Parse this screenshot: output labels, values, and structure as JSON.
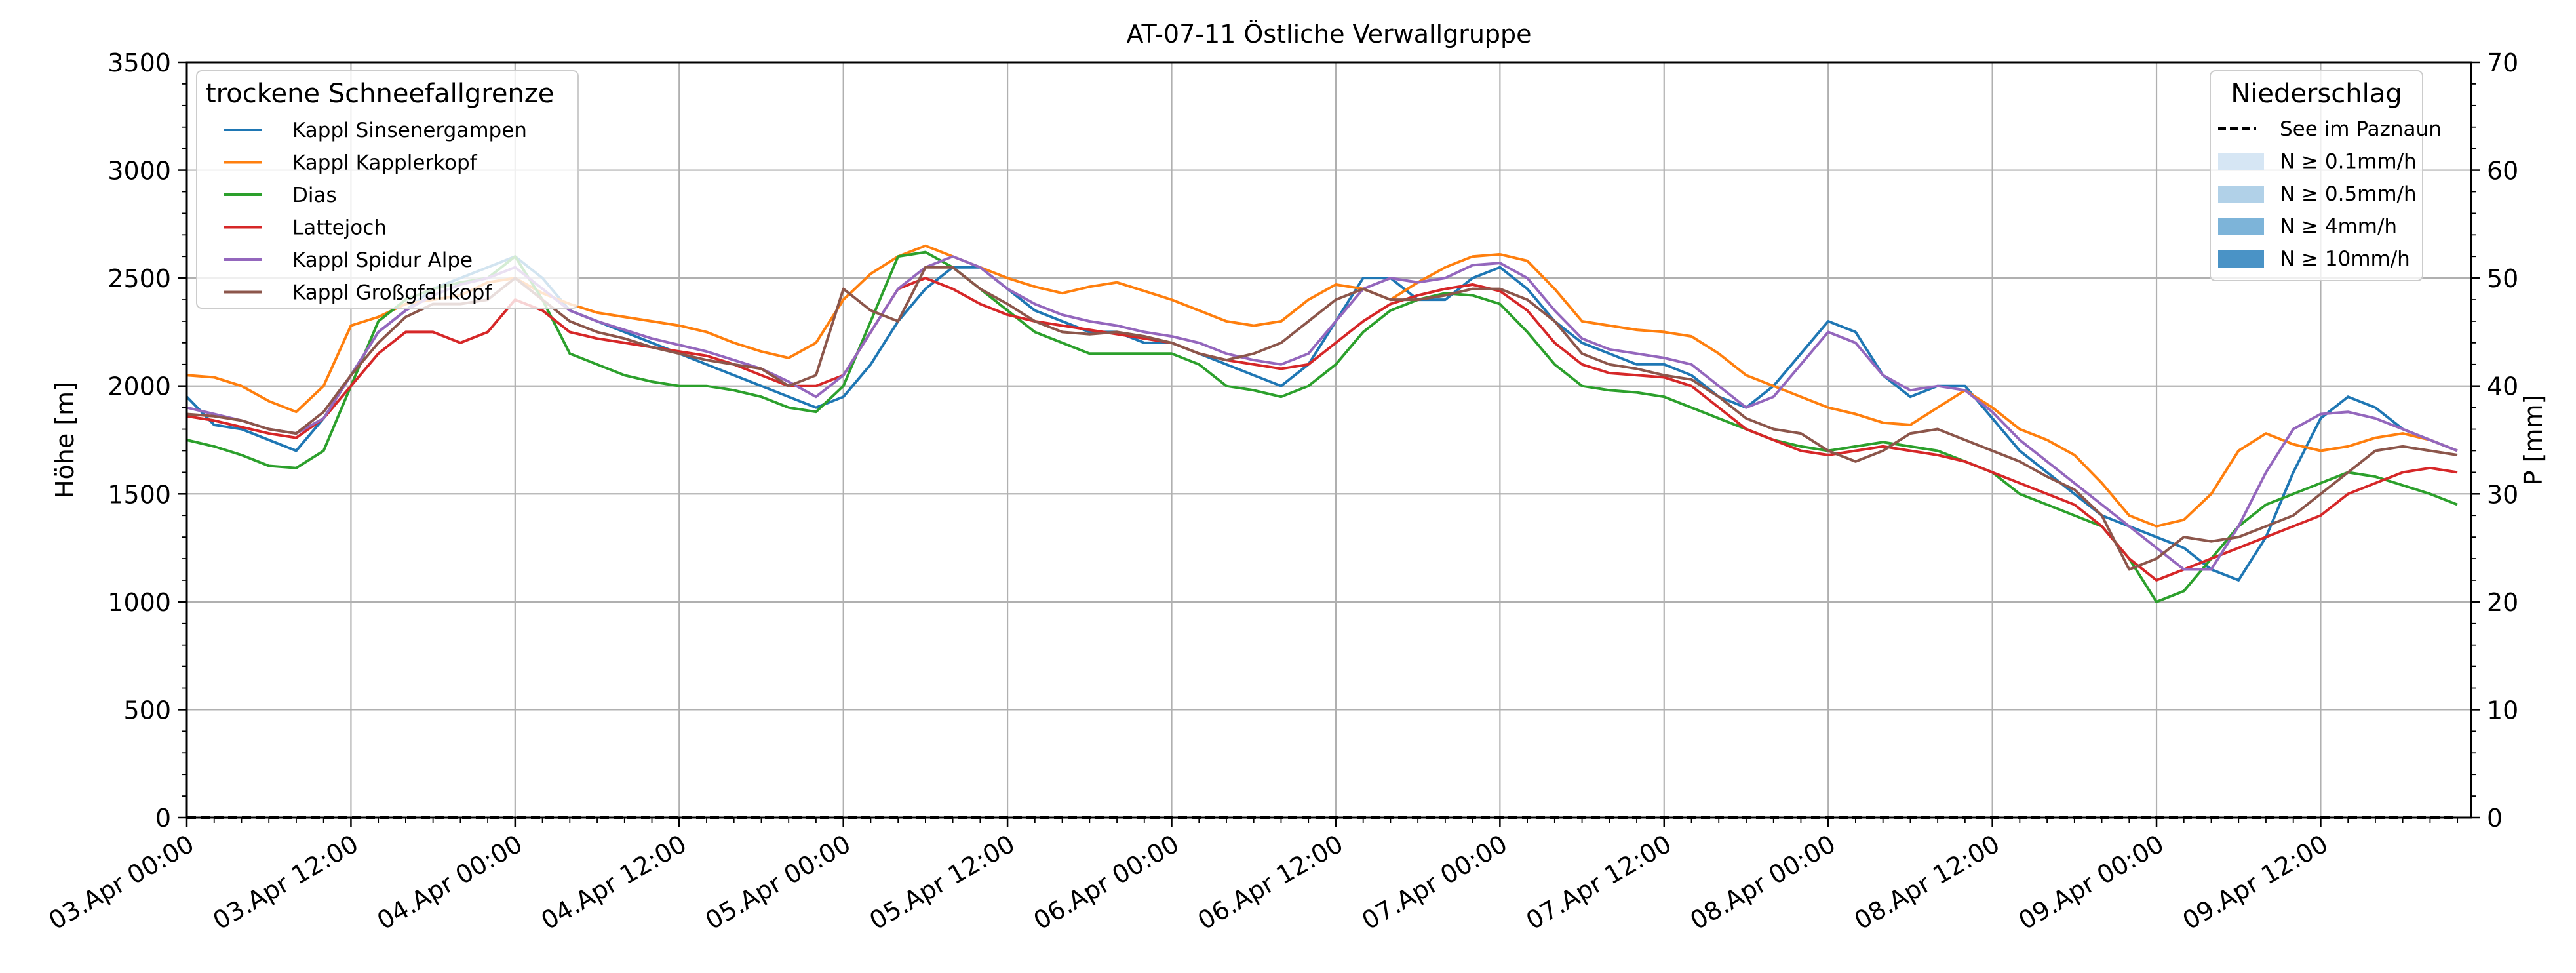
{
  "chart_data": {
    "type": "line",
    "title": "AT-07-11 Östliche Verwallgruppe",
    "ylabel": "Höhe [m]",
    "ylabel_right": "P [mm]",
    "xlabel": "",
    "ylim": [
      0,
      3500
    ],
    "ylim_right": [
      0,
      70
    ],
    "yticks": [
      0,
      500,
      1000,
      1500,
      2000,
      2500,
      3000,
      3500
    ],
    "yticks_right": [
      0,
      10,
      20,
      30,
      40,
      50,
      60,
      70
    ],
    "grid": true,
    "x_start": "03.Apr 00:00",
    "x_end": "09.Apr 23:00",
    "x_step_hours": 2,
    "xticks": [
      "03.Apr 00:00",
      "03.Apr 12:00",
      "04.Apr 00:00",
      "04.Apr 12:00",
      "05.Apr 00:00",
      "05.Apr 12:00",
      "06.Apr 00:00",
      "06.Apr 12:00",
      "07.Apr 00:00",
      "07.Apr 12:00",
      "08.Apr 00:00",
      "08.Apr 12:00",
      "09.Apr 00:00",
      "09.Apr 12:00"
    ],
    "legend_left": {
      "title": "trockene Schneefallgrenze",
      "location": "top-left"
    },
    "legend_right": {
      "title": "Niederschlag",
      "location": "top-right",
      "entries": [
        {
          "label": "See im Paznaun",
          "style": "dashed-line",
          "color": "#000000"
        },
        {
          "label": "N ≥ 0.1mm/h",
          "style": "patch",
          "color": "#d6e6f4"
        },
        {
          "label": "N ≥ 0.5mm/h",
          "style": "patch",
          "color": "#b1d1e8"
        },
        {
          "label": "N ≥ 4mm/h",
          "style": "patch",
          "color": "#7db4d9"
        },
        {
          "label": "N ≥ 10mm/h",
          "style": "patch",
          "color": "#4a93c6"
        }
      ]
    },
    "precipitation": {
      "name": "See im Paznaun",
      "values": [
        0,
        0,
        0,
        0,
        0,
        0,
        0,
        0,
        0,
        0,
        0,
        0,
        0,
        0,
        0,
        0,
        0,
        0,
        0,
        0,
        0,
        0,
        0,
        0,
        0,
        0,
        0,
        0,
        0,
        0,
        0,
        0,
        0,
        0,
        0,
        0,
        0,
        0,
        0,
        0,
        0,
        0,
        0,
        0,
        0,
        0,
        0,
        0,
        0,
        0,
        0,
        0,
        0,
        0,
        0,
        0,
        0,
        0,
        0,
        0,
        0,
        0,
        0,
        0,
        0,
        0,
        0,
        0,
        0,
        0,
        0,
        0,
        0,
        0,
        0,
        0,
        0,
        0,
        0,
        0,
        0,
        0,
        0,
        0
      ]
    },
    "series": [
      {
        "name": "Kappl Sinsenergampen",
        "color": "#1f77b4",
        "values": [
          1950,
          1820,
          1800,
          1750,
          1700,
          1850,
          2050,
          2250,
          2350,
          2450,
          2500,
          2550,
          2600,
          2500,
          2350,
          2300,
          2250,
          2200,
          2150,
          2100,
          2050,
          2000,
          1950,
          1900,
          1950,
          2100,
          2300,
          2450,
          2550,
          2550,
          2450,
          2350,
          2300,
          2250,
          2250,
          2200,
          2200,
          2150,
          2100,
          2050,
          2000,
          2100,
          2300,
          2500,
          2500,
          2400,
          2400,
          2500,
          2550,
          2450,
          2300,
          2200,
          2150,
          2100,
          2100,
          2050,
          1950,
          1900,
          2000,
          2150,
          2300,
          2250,
          2050,
          1950,
          2000,
          2000,
          1850,
          1700,
          1600,
          1500,
          1400,
          1350,
          1300,
          1250,
          1150,
          1100,
          1300,
          1600,
          1850,
          1950,
          1900,
          1800,
          1750,
          1700
        ]
      },
      {
        "name": "Kappl Kapplerkopf",
        "color": "#ff7f0e",
        "values": [
          2050,
          2040,
          2000,
          1930,
          1880,
          2000,
          2280,
          2320,
          2380,
          2400,
          2420,
          2480,
          2500,
          2430,
          2380,
          2340,
          2320,
          2300,
          2280,
          2250,
          2200,
          2160,
          2130,
          2200,
          2400,
          2520,
          2600,
          2650,
          2600,
          2550,
          2500,
          2460,
          2430,
          2460,
          2480,
          2440,
          2400,
          2350,
          2300,
          2280,
          2300,
          2400,
          2470,
          2450,
          2400,
          2480,
          2550,
          2600,
          2610,
          2580,
          2450,
          2300,
          2280,
          2260,
          2250,
          2230,
          2150,
          2050,
          2000,
          1950,
          1900,
          1870,
          1830,
          1820,
          1900,
          1980,
          1900,
          1800,
          1750,
          1680,
          1550,
          1400,
          1350,
          1380,
          1500,
          1700,
          1780,
          1730,
          1700,
          1720,
          1760,
          1780,
          1750,
          1700
        ]
      },
      {
        "name": "Dias",
        "color": "#2ca02c",
        "values": [
          1750,
          1720,
          1680,
          1630,
          1620,
          1700,
          2000,
          2300,
          2400,
          2450,
          2480,
          2500,
          2600,
          2400,
          2150,
          2100,
          2050,
          2020,
          2000,
          2000,
          1980,
          1950,
          1900,
          1880,
          2000,
          2300,
          2600,
          2620,
          2550,
          2450,
          2350,
          2250,
          2200,
          2150,
          2150,
          2150,
          2150,
          2100,
          2000,
          1980,
          1950,
          2000,
          2100,
          2250,
          2350,
          2400,
          2430,
          2420,
          2380,
          2250,
          2100,
          2000,
          1980,
          1970,
          1950,
          1900,
          1850,
          1800,
          1750,
          1720,
          1700,
          1720,
          1740,
          1720,
          1700,
          1650,
          1600,
          1500,
          1450,
          1400,
          1350,
          1200,
          1000,
          1050,
          1200,
          1350,
          1450,
          1500,
          1550,
          1600,
          1580,
          1540,
          1500,
          1450
        ]
      },
      {
        "name": "Lattejoch",
        "color": "#d62728",
        "values": [
          1860,
          1840,
          1810,
          1780,
          1760,
          1850,
          2000,
          2150,
          2250,
          2250,
          2200,
          2250,
          2400,
          2350,
          2250,
          2220,
          2200,
          2180,
          2160,
          2140,
          2100,
          2050,
          2000,
          2000,
          2050,
          2250,
          2450,
          2500,
          2450,
          2380,
          2330,
          2300,
          2280,
          2260,
          2240,
          2220,
          2200,
          2150,
          2120,
          2100,
          2080,
          2100,
          2200,
          2300,
          2380,
          2420,
          2450,
          2470,
          2440,
          2350,
          2200,
          2100,
          2060,
          2050,
          2040,
          2000,
          1900,
          1800,
          1750,
          1700,
          1680,
          1700,
          1720,
          1700,
          1680,
          1650,
          1600,
          1550,
          1500,
          1450,
          1350,
          1200,
          1100,
          1150,
          1200,
          1250,
          1300,
          1350,
          1400,
          1500,
          1550,
          1600,
          1620,
          1600
        ]
      },
      {
        "name": "Kappl Spidur Alpe",
        "color": "#9467bd",
        "values": [
          1900,
          1870,
          1840,
          1800,
          1780,
          1850,
          2050,
          2250,
          2350,
          2420,
          2470,
          2500,
          2550,
          2450,
          2350,
          2300,
          2260,
          2220,
          2190,
          2160,
          2120,
          2080,
          2020,
          1950,
          2050,
          2250,
          2450,
          2550,
          2600,
          2550,
          2450,
          2380,
          2330,
          2300,
          2280,
          2250,
          2230,
          2200,
          2150,
          2120,
          2100,
          2150,
          2300,
          2450,
          2500,
          2480,
          2500,
          2560,
          2570,
          2500,
          2350,
          2220,
          2170,
          2150,
          2130,
          2100,
          2000,
          1900,
          1950,
          2100,
          2250,
          2200,
          2050,
          1980,
          2000,
          1980,
          1880,
          1750,
          1650,
          1550,
          1450,
          1350,
          1250,
          1150,
          1150,
          1350,
          1600,
          1800,
          1870,
          1880,
          1850,
          1800,
          1750,
          1700
        ]
      },
      {
        "name": "Kappl Großgfallkopf",
        "color": "#8c564b",
        "values": [
          1870,
          1860,
          1840,
          1800,
          1780,
          1880,
          2050,
          2200,
          2320,
          2380,
          2380,
          2400,
          2500,
          2400,
          2300,
          2250,
          2220,
          2180,
          2150,
          2120,
          2100,
          2080,
          2000,
          2050,
          2450,
          2350,
          2300,
          2550,
          2550,
          2450,
          2380,
          2300,
          2250,
          2240,
          2250,
          2230,
          2200,
          2150,
          2120,
          2150,
          2200,
          2300,
          2400,
          2450,
          2400,
          2400,
          2420,
          2450,
          2450,
          2400,
          2300,
          2150,
          2100,
          2080,
          2050,
          2030,
          1950,
          1850,
          1800,
          1780,
          1700,
          1650,
          1700,
          1780,
          1800,
          1750,
          1700,
          1650,
          1580,
          1520,
          1400,
          1150,
          1200,
          1300,
          1280,
          1300,
          1350,
          1400,
          1500,
          1600,
          1700,
          1720,
          1700,
          1680
        ]
      }
    ]
  }
}
